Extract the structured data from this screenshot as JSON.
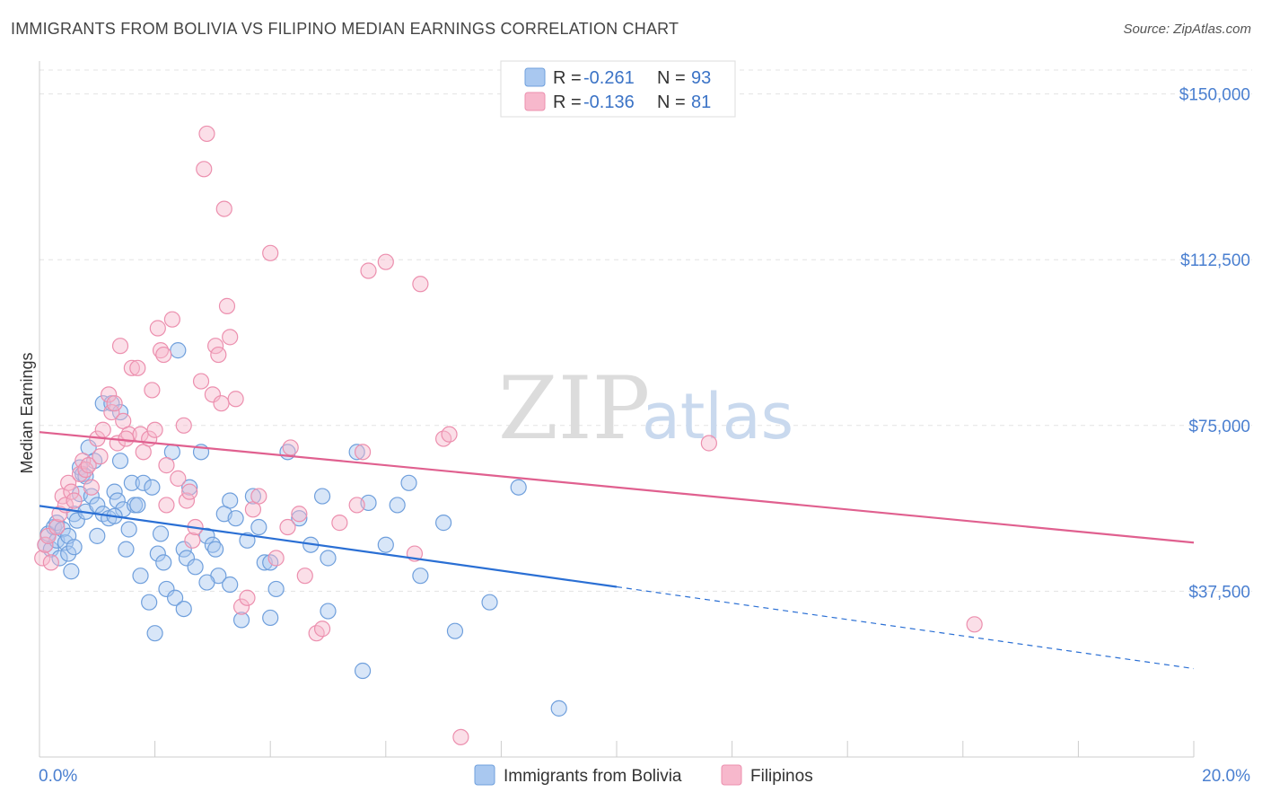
{
  "title": "IMMIGRANTS FROM BOLIVIA VS FILIPINO MEDIAN EARNINGS CORRELATION CHART",
  "source": "Source: ZipAtlas.com",
  "watermark": {
    "zip": "ZIP",
    "atlas": "atlas"
  },
  "legend": {
    "r_label": "R =",
    "n_label": "N =",
    "rows": [
      {
        "r": "-0.261",
        "n": "93"
      },
      {
        "r": "-0.136",
        "n": "81"
      }
    ]
  },
  "colors": {
    "bolivia_fill": "#a9c8f0",
    "bolivia_stroke": "#6f9fdc",
    "bolivia_line": "#2a6fd4",
    "filipino_fill": "#f7b8cc",
    "filipino_stroke": "#ec8fae",
    "filipino_line": "#e0608f",
    "tick_text": "#4a7fd0"
  },
  "chart_data": {
    "type": "scatter",
    "xlabel": "",
    "ylabel": "Median Earnings",
    "xlim": [
      0,
      20
    ],
    "ylim": [
      0,
      155000
    ],
    "x_tick_labels": [
      "0.0%",
      "20.0%"
    ],
    "y_ticks": [
      37500,
      75000,
      112500,
      150000
    ],
    "y_tick_labels": [
      "$37,500",
      "$75,000",
      "$112,500",
      "$150,000"
    ],
    "grid": true,
    "legend_position": "top-center",
    "series": [
      {
        "name": "Immigrants from Bolivia",
        "trend": {
          "x0": 0,
          "y0": 56800,
          "x1": 10,
          "y1": 38500,
          "dashed_to_x": 20,
          "dashed_to_y": 20000
        },
        "points": [
          [
            0.1,
            48000
          ],
          [
            0.15,
            50500
          ],
          [
            0.2,
            47000
          ],
          [
            0.25,
            52000
          ],
          [
            0.3,
            49000
          ],
          [
            0.3,
            53000
          ],
          [
            0.35,
            45000
          ],
          [
            0.4,
            51500
          ],
          [
            0.45,
            48500
          ],
          [
            0.5,
            50000
          ],
          [
            0.5,
            46000
          ],
          [
            0.55,
            42000
          ],
          [
            0.6,
            47500
          ],
          [
            0.6,
            55000
          ],
          [
            0.65,
            53500
          ],
          [
            0.7,
            59500
          ],
          [
            0.7,
            65500
          ],
          [
            0.75,
            64000
          ],
          [
            0.8,
            55500
          ],
          [
            0.85,
            70000
          ],
          [
            0.9,
            59000
          ],
          [
            0.95,
            67000
          ],
          [
            1.0,
            57000
          ],
          [
            1.1,
            55000
          ],
          [
            1.1,
            80000
          ],
          [
            1.2,
            54000
          ],
          [
            1.25,
            80000
          ],
          [
            1.3,
            60000
          ],
          [
            1.35,
            58000
          ],
          [
            1.4,
            78000
          ],
          [
            1.4,
            67000
          ],
          [
            1.45,
            56000
          ],
          [
            1.5,
            47000
          ],
          [
            1.55,
            51500
          ],
          [
            1.6,
            62000
          ],
          [
            1.65,
            57000
          ],
          [
            1.7,
            57000
          ],
          [
            1.75,
            41000
          ],
          [
            1.8,
            62000
          ],
          [
            1.9,
            35000
          ],
          [
            1.95,
            61000
          ],
          [
            2.0,
            28000
          ],
          [
            2.05,
            46000
          ],
          [
            2.1,
            50500
          ],
          [
            2.15,
            44000
          ],
          [
            2.2,
            38000
          ],
          [
            2.3,
            69000
          ],
          [
            2.35,
            36000
          ],
          [
            2.4,
            92000
          ],
          [
            2.5,
            47000
          ],
          [
            2.55,
            45000
          ],
          [
            2.6,
            61000
          ],
          [
            2.7,
            43000
          ],
          [
            2.8,
            69000
          ],
          [
            2.9,
            50000
          ],
          [
            3.0,
            48000
          ],
          [
            3.05,
            47000
          ],
          [
            3.1,
            41000
          ],
          [
            3.2,
            55000
          ],
          [
            3.3,
            58000
          ],
          [
            3.4,
            54000
          ],
          [
            3.5,
            31000
          ],
          [
            3.6,
            49000
          ],
          [
            3.7,
            59000
          ],
          [
            3.8,
            52000
          ],
          [
            3.9,
            44000
          ],
          [
            4.0,
            31500
          ],
          [
            4.1,
            38000
          ],
          [
            4.3,
            69000
          ],
          [
            4.5,
            54000
          ],
          [
            4.7,
            48000
          ],
          [
            4.9,
            59000
          ],
          [
            5.0,
            33000
          ],
          [
            5.5,
            69000
          ],
          [
            5.6,
            19500
          ],
          [
            5.7,
            57500
          ],
          [
            6.2,
            57000
          ],
          [
            6.4,
            62000
          ],
          [
            6.6,
            41000
          ],
          [
            7.0,
            53000
          ],
          [
            7.2,
            28500
          ],
          [
            7.8,
            35000
          ],
          [
            8.3,
            61000
          ],
          [
            9.0,
            11000
          ],
          [
            0.8,
            63500
          ],
          [
            1.0,
            50000
          ],
          [
            1.3,
            54500
          ],
          [
            2.5,
            33500
          ],
          [
            2.9,
            39500
          ],
          [
            3.3,
            39000
          ],
          [
            4.0,
            44000
          ],
          [
            5.0,
            45000
          ],
          [
            6.0,
            48000
          ]
        ]
      },
      {
        "name": "Filipinos",
        "trend": {
          "x0": 0,
          "y0": 73500,
          "x1": 20,
          "y1": 48500
        },
        "points": [
          [
            0.05,
            45000
          ],
          [
            0.1,
            48000
          ],
          [
            0.15,
            50000
          ],
          [
            0.2,
            44000
          ],
          [
            0.3,
            52000
          ],
          [
            0.35,
            55000
          ],
          [
            0.4,
            59000
          ],
          [
            0.45,
            57000
          ],
          [
            0.5,
            62000
          ],
          [
            0.55,
            60000
          ],
          [
            0.6,
            58000
          ],
          [
            0.7,
            64000
          ],
          [
            0.75,
            67000
          ],
          [
            0.8,
            65000
          ],
          [
            0.85,
            66000
          ],
          [
            0.9,
            61000
          ],
          [
            1.0,
            72000
          ],
          [
            1.05,
            68000
          ],
          [
            1.1,
            74000
          ],
          [
            1.2,
            82000
          ],
          [
            1.25,
            78000
          ],
          [
            1.3,
            80000
          ],
          [
            1.35,
            71000
          ],
          [
            1.4,
            93000
          ],
          [
            1.45,
            76000
          ],
          [
            1.55,
            73000
          ],
          [
            1.6,
            88000
          ],
          [
            1.7,
            88000
          ],
          [
            1.75,
            73000
          ],
          [
            1.8,
            69000
          ],
          [
            1.9,
            72000
          ],
          [
            1.95,
            83000
          ],
          [
            2.0,
            74000
          ],
          [
            2.05,
            97000
          ],
          [
            2.1,
            92000
          ],
          [
            2.15,
            91000
          ],
          [
            2.2,
            66000
          ],
          [
            2.3,
            99000
          ],
          [
            2.4,
            63000
          ],
          [
            2.5,
            75000
          ],
          [
            2.55,
            58000
          ],
          [
            2.6,
            60000
          ],
          [
            2.65,
            49000
          ],
          [
            2.7,
            52000
          ],
          [
            2.8,
            85000
          ],
          [
            2.85,
            133000
          ],
          [
            2.9,
            141000
          ],
          [
            3.0,
            82000
          ],
          [
            3.05,
            93000
          ],
          [
            3.1,
            91000
          ],
          [
            3.15,
            80000
          ],
          [
            3.2,
            124000
          ],
          [
            3.25,
            102000
          ],
          [
            3.3,
            95000
          ],
          [
            3.4,
            81000
          ],
          [
            3.5,
            34000
          ],
          [
            3.6,
            36000
          ],
          [
            3.7,
            56000
          ],
          [
            3.8,
            59000
          ],
          [
            4.0,
            114000
          ],
          [
            4.1,
            45000
          ],
          [
            4.3,
            52000
          ],
          [
            4.35,
            70000
          ],
          [
            4.5,
            55000
          ],
          [
            4.6,
            41000
          ],
          [
            4.8,
            28000
          ],
          [
            4.9,
            29000
          ],
          [
            5.2,
            53000
          ],
          [
            5.5,
            57000
          ],
          [
            5.6,
            69000
          ],
          [
            5.7,
            110000
          ],
          [
            6.0,
            112000
          ],
          [
            6.5,
            46000
          ],
          [
            6.6,
            107000
          ],
          [
            7.0,
            72000
          ],
          [
            7.1,
            73000
          ],
          [
            7.3,
            4500
          ],
          [
            11.6,
            71000
          ],
          [
            16.2,
            30000
          ],
          [
            1.5,
            72000
          ],
          [
            2.2,
            57000
          ]
        ]
      }
    ]
  }
}
